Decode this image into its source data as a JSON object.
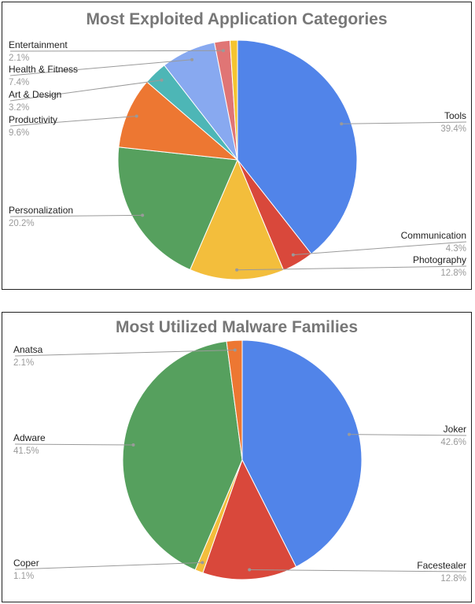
{
  "chart_data": [
    {
      "type": "pie",
      "title": "Most Exploited Application Categories",
      "slices": [
        {
          "name": "Tools",
          "value": 39.4,
          "label": "39.4%",
          "color": "#5184e9"
        },
        {
          "name": "Communication",
          "value": 4.3,
          "label": "4.3%",
          "color": "#d9483b"
        },
        {
          "name": "Photography",
          "value": 12.8,
          "label": "12.8%",
          "color": "#f3be3c"
        },
        {
          "name": "Personalization",
          "value": 20.2,
          "label": "20.2%",
          "color": "#56a05e"
        },
        {
          "name": "Productivity",
          "value": 9.6,
          "label": "9.6%",
          "color": "#ed7732"
        },
        {
          "name": "Art & Design",
          "value": 3.2,
          "label": "3.2%",
          "color": "#4db6b6"
        },
        {
          "name": "Health & Fitness",
          "value": 7.4,
          "label": "7.4%",
          "color": "#88a9f0"
        },
        {
          "name": "Entertainment",
          "value": 2.1,
          "label": "2.1%",
          "color": "#e07575"
        },
        {
          "name": "",
          "value": 1.0,
          "label": "",
          "color": "#f4c430"
        }
      ]
    },
    {
      "type": "pie",
      "title": "Most Utilized Malware Families",
      "slices": [
        {
          "name": "Joker",
          "value": 42.6,
          "label": "42.6%",
          "color": "#5184e9"
        },
        {
          "name": "Facestealer",
          "value": 12.8,
          "label": "12.8%",
          "color": "#d9483b"
        },
        {
          "name": "Coper",
          "value": 1.1,
          "label": "1.1%",
          "color": "#f3be3c"
        },
        {
          "name": "Adware",
          "value": 41.5,
          "label": "41.5%",
          "color": "#56a05e"
        },
        {
          "name": "Anatsa",
          "value": 2.1,
          "label": "2.1%",
          "color": "#ed7732"
        }
      ]
    }
  ]
}
